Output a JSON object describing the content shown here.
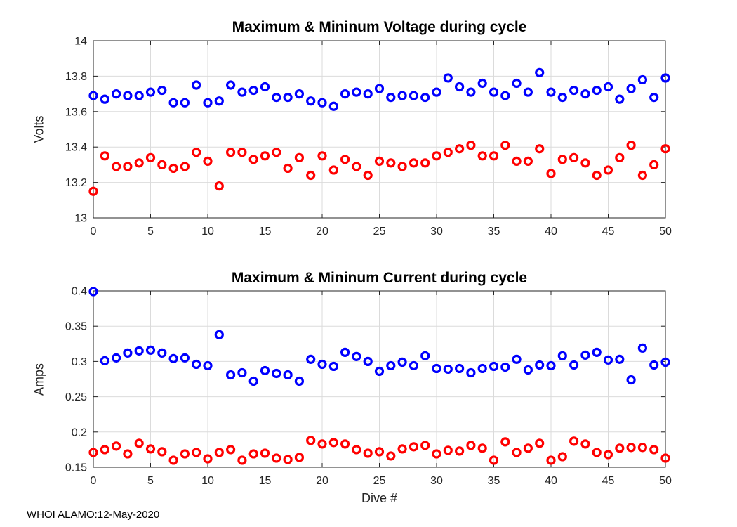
{
  "figure": {
    "footer": "WHOI ALAMO:12-May-2020",
    "background": "#FFFFFF",
    "axis_color": "#262626",
    "grid_color": "#DBDBDB",
    "max_color": "#0000FF",
    "min_color": "#FF0000"
  },
  "chart_data": [
    {
      "type": "scatter",
      "title": "Maximum & Mininum Voltage during cycle",
      "xlabel": "",
      "ylabel": "Volts",
      "xlim": [
        0,
        50
      ],
      "ylim": [
        13,
        14
      ],
      "xticks": [
        0,
        5,
        10,
        15,
        20,
        25,
        30,
        35,
        40,
        45,
        50
      ],
      "yticks": [
        13,
        13.2,
        13.4,
        13.6,
        13.8,
        14
      ],
      "ytick_labels": [
        "13",
        "13.2",
        "13.4",
        "13.6",
        "13.8",
        "14"
      ],
      "grid": true,
      "legend": "none",
      "marker": "circle-open",
      "x": [
        0,
        1,
        2,
        3,
        4,
        5,
        6,
        7,
        8,
        9,
        10,
        11,
        12,
        13,
        14,
        15,
        16,
        17,
        18,
        19,
        20,
        21,
        22,
        23,
        24,
        25,
        26,
        27,
        28,
        29,
        30,
        31,
        32,
        33,
        34,
        35,
        36,
        37,
        38,
        39,
        40,
        41,
        42,
        43,
        44,
        45,
        46,
        47,
        48,
        49,
        50
      ],
      "series": [
        {
          "name": "Max",
          "color": "#0000FF",
          "values": [
            13.69,
            13.67,
            13.7,
            13.69,
            13.69,
            13.71,
            13.72,
            13.65,
            13.65,
            13.75,
            13.65,
            13.66,
            13.75,
            13.71,
            13.72,
            13.74,
            13.68,
            13.68,
            13.7,
            13.66,
            13.65,
            13.63,
            13.7,
            13.71,
            13.7,
            13.73,
            13.68,
            13.69,
            13.69,
            13.68,
            13.71,
            13.79,
            13.74,
            13.71,
            13.76,
            13.71,
            13.69,
            13.76,
            13.71,
            13.82,
            13.71,
            13.68,
            13.72,
            13.7,
            13.72,
            13.74,
            13.67,
            13.73,
            13.78,
            13.68,
            13.79
          ]
        },
        {
          "name": "Min",
          "color": "#FF0000",
          "values": [
            13.15,
            13.35,
            13.29,
            13.29,
            13.31,
            13.34,
            13.3,
            13.28,
            13.29,
            13.37,
            13.32,
            13.18,
            13.37,
            13.37,
            13.33,
            13.35,
            13.37,
            13.28,
            13.34,
            13.24,
            13.35,
            13.27,
            13.33,
            13.29,
            13.24,
            13.32,
            13.31,
            13.29,
            13.31,
            13.31,
            13.35,
            13.37,
            13.39,
            13.41,
            13.35,
            13.35,
            13.41,
            13.32,
            13.32,
            13.39,
            13.25,
            13.33,
            13.34,
            13.31,
            13.24,
            13.27,
            13.34,
            13.41,
            13.24,
            13.3,
            13.39
          ]
        }
      ]
    },
    {
      "type": "scatter",
      "title": "Maximum & Mininum Current during cycle",
      "xlabel": "Dive #",
      "ylabel": "Amps",
      "xlim": [
        0,
        50
      ],
      "ylim": [
        0.15,
        0.4
      ],
      "xticks": [
        0,
        5,
        10,
        15,
        20,
        25,
        30,
        35,
        40,
        45,
        50
      ],
      "yticks": [
        0.15,
        0.2,
        0.25,
        0.3,
        0.35,
        0.4
      ],
      "ytick_labels": [
        "0.15",
        "0.2",
        "0.25",
        "0.3",
        "0.35",
        "0.4"
      ],
      "grid": true,
      "legend": "none",
      "marker": "circle-open",
      "x": [
        0,
        1,
        2,
        3,
        4,
        5,
        6,
        7,
        8,
        9,
        10,
        11,
        12,
        13,
        14,
        15,
        16,
        17,
        18,
        19,
        20,
        21,
        22,
        23,
        24,
        25,
        26,
        27,
        28,
        29,
        30,
        31,
        32,
        33,
        34,
        35,
        36,
        37,
        38,
        39,
        40,
        41,
        42,
        43,
        44,
        45,
        46,
        47,
        48,
        49,
        50
      ],
      "series": [
        {
          "name": "Max",
          "color": "#0000FF",
          "values": [
            0.399,
            0.301,
            0.305,
            0.312,
            0.315,
            0.316,
            0.312,
            0.304,
            0.305,
            0.296,
            0.294,
            0.338,
            0.281,
            0.284,
            0.272,
            0.287,
            0.283,
            0.281,
            0.272,
            0.303,
            0.296,
            0.293,
            0.313,
            0.307,
            0.3,
            0.286,
            0.294,
            0.299,
            0.294,
            0.308,
            0.29,
            0.289,
            0.29,
            0.284,
            0.29,
            0.293,
            0.292,
            0.303,
            0.288,
            0.295,
            0.294,
            0.308,
            0.295,
            0.309,
            0.313,
            0.302,
            0.303,
            0.274,
            0.319,
            0.295,
            0.299
          ]
        },
        {
          "name": "Min",
          "color": "#FF0000",
          "values": [
            0.171,
            0.175,
            0.18,
            0.169,
            0.184,
            0.176,
            0.172,
            0.16,
            0.169,
            0.171,
            0.162,
            0.171,
            0.175,
            0.16,
            0.169,
            0.17,
            0.163,
            0.161,
            0.164,
            0.188,
            0.183,
            0.185,
            0.183,
            0.175,
            0.17,
            0.172,
            0.166,
            0.176,
            0.179,
            0.181,
            0.169,
            0.174,
            0.173,
            0.181,
            0.177,
            0.16,
            0.186,
            0.171,
            0.177,
            0.184,
            0.16,
            0.165,
            0.187,
            0.183,
            0.171,
            0.168,
            0.177,
            0.178,
            0.178,
            0.175,
            0.163
          ]
        }
      ]
    }
  ]
}
